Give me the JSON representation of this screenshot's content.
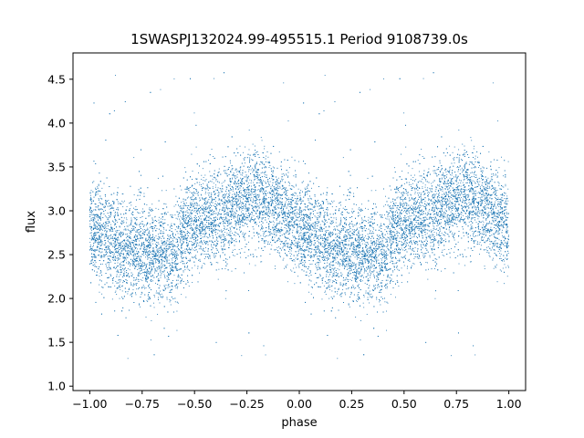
{
  "chart_data": {
    "type": "scatter",
    "title": "1SWASPJ132024.99-495515.1 Period 9108739.0s",
    "xlabel": "phase",
    "ylabel": "flux",
    "xlim": [
      -1.08,
      1.08
    ],
    "ylim": [
      0.95,
      4.8
    ],
    "xticks": [
      -1.0,
      -0.75,
      -0.5,
      -0.25,
      0.0,
      0.25,
      0.5,
      0.75,
      1.0
    ],
    "xtick_labels": [
      "−1.00",
      "−0.75",
      "−0.50",
      "−0.25",
      "0.00",
      "0.25",
      "0.50",
      "0.75",
      "1.00"
    ],
    "yticks": [
      1.0,
      1.5,
      2.0,
      2.5,
      3.0,
      3.5,
      4.0,
      4.5
    ],
    "ytick_labels": [
      "1.0",
      "1.5",
      "2.0",
      "2.5",
      "3.0",
      "3.5",
      "4.0",
      "4.5"
    ],
    "grid": false,
    "point_color": "#1f77b4",
    "phase_profile": [
      [
        0.0,
        2.8
      ],
      [
        0.05,
        2.75
      ],
      [
        0.1,
        2.7
      ],
      [
        0.15,
        2.55
      ],
      [
        0.2,
        2.6
      ],
      [
        0.25,
        2.5
      ],
      [
        0.3,
        2.55
      ],
      [
        0.35,
        2.5
      ],
      [
        0.4,
        2.45
      ],
      [
        0.45,
        2.75
      ],
      [
        0.5,
        2.85
      ],
      [
        0.55,
        2.9
      ],
      [
        0.6,
        2.9
      ],
      [
        0.65,
        3.0
      ],
      [
        0.7,
        3.05
      ],
      [
        0.75,
        3.1
      ],
      [
        0.8,
        3.15
      ],
      [
        0.85,
        3.1
      ],
      [
        0.9,
        3.0
      ],
      [
        0.95,
        2.95
      ],
      [
        1.0,
        2.8
      ]
    ],
    "scatter_sigma": 0.27,
    "point_count_per_phase_cycle": 9000,
    "outlier_range": [
      1.1,
      4.6
    ]
  }
}
